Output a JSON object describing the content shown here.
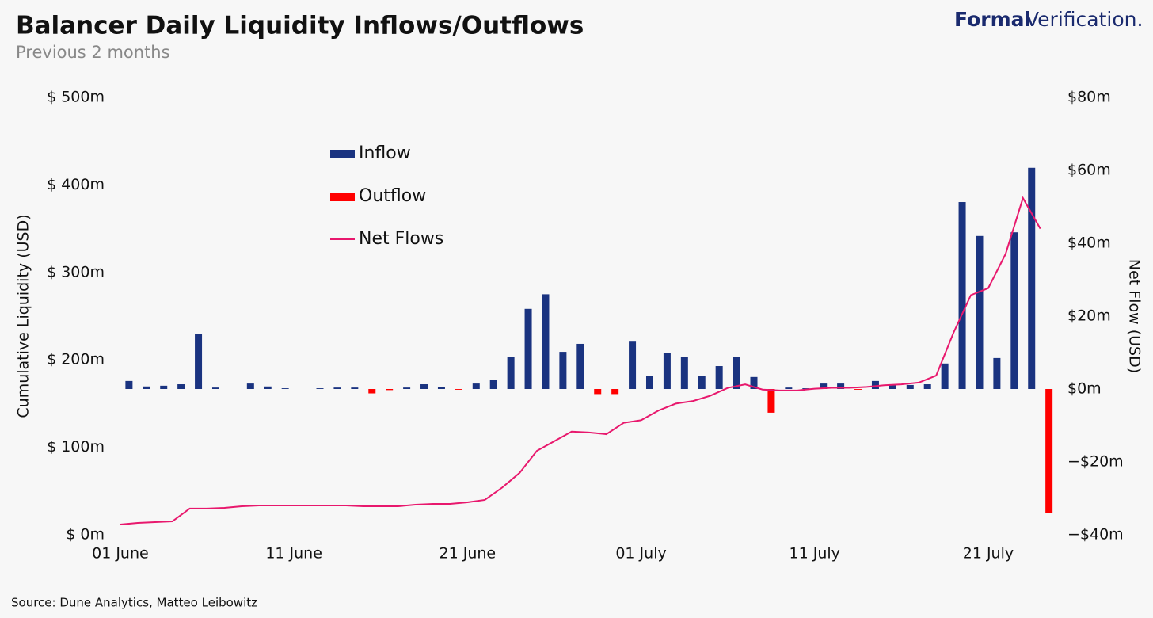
{
  "chart_data": {
    "type": "bar_line",
    "title": "Balancer Daily Liquidity Inflows/Outflows",
    "subtitle": "Previous 2 months",
    "brand": {
      "bold": "Formal",
      "light": "Verification."
    },
    "source": "Source:  Dune Analytics, Matteo Leibowitz",
    "ylabel": "Cumulative Liquidity (USD)",
    "y2label": "Net Flow (USD)",
    "x": [
      0,
      1,
      2,
      3,
      4,
      5,
      6,
      7,
      8,
      9,
      10,
      11,
      12,
      13,
      14,
      15,
      16,
      17,
      18,
      19,
      20,
      21,
      22,
      23,
      24,
      25,
      26,
      27,
      28,
      29,
      30,
      31,
      32,
      33,
      34,
      35,
      36,
      37,
      38,
      39,
      40,
      41,
      42,
      43,
      44,
      45,
      46,
      47,
      48,
      49,
      50,
      51,
      52,
      53
    ],
    "xlim": [
      -1,
      54.2
    ],
    "xticks": [
      {
        "value": 0,
        "label": "01 June"
      },
      {
        "value": 10,
        "label": "11 June"
      },
      {
        "value": 20,
        "label": "21 June"
      },
      {
        "value": 30,
        "label": "01 July"
      },
      {
        "value": 40,
        "label": "11 July"
      },
      {
        "value": 50,
        "label": "21 July"
      }
    ],
    "ylim": [
      0,
      500
    ],
    "yticks": [
      {
        "value": 0,
        "label": "$ 0m"
      },
      {
        "value": 100,
        "label": "$ 100m"
      },
      {
        "value": 200,
        "label": "$ 200m"
      },
      {
        "value": 300,
        "label": "$ 300m"
      },
      {
        "value": 400,
        "label": "$ 400m"
      },
      {
        "value": 500,
        "label": "$ 500m"
      }
    ],
    "y2lim": [
      -40,
      80
    ],
    "y2ticks": [
      {
        "value": -40,
        "label": "−$40m"
      },
      {
        "value": -20,
        "label": "−$20m"
      },
      {
        "value": 0,
        "label": "$0m"
      },
      {
        "value": 20,
        "label": "$20m"
      },
      {
        "value": 40,
        "label": "$40m"
      },
      {
        "value": 60,
        "label": "$60m"
      },
      {
        "value": 80,
        "label": "$80m"
      }
    ],
    "series": [
      {
        "name": "Inflow",
        "type": "bar",
        "axis": "y2",
        "color": "#1a3380",
        "values": [
          2.2,
          0.7,
          0.9,
          1.3,
          15.2,
          0.4,
          null,
          1.5,
          0.7,
          0.2,
          null,
          0.2,
          0.4,
          0.4,
          null,
          null,
          0.4,
          1.3,
          0.5,
          null,
          1.5,
          2.4,
          8.9,
          22,
          26,
          10.2,
          12.4,
          null,
          null,
          13,
          3.5,
          10,
          8.7,
          3.5,
          6.3,
          8.7,
          3.3,
          null,
          0.4,
          0.2,
          1.5,
          1.5,
          null,
          2.2,
          1.1,
          1.1,
          1.3,
          7,
          51.3,
          42,
          8.5,
          43,
          60.7,
          null
        ]
      },
      {
        "name": "Outflow",
        "type": "bar",
        "axis": "y2",
        "color": "#ff0000",
        "values": [
          null,
          null,
          null,
          null,
          null,
          null,
          null,
          null,
          null,
          null,
          null,
          null,
          null,
          null,
          -1.2,
          -0.3,
          null,
          null,
          null,
          -0.2,
          null,
          null,
          null,
          null,
          null,
          null,
          null,
          -1.4,
          -1.4,
          null,
          null,
          null,
          null,
          null,
          null,
          null,
          null,
          -6.5,
          null,
          null,
          null,
          null,
          -0.2,
          null,
          null,
          null,
          null,
          null,
          null,
          null,
          null,
          null,
          null,
          -34.1
        ]
      },
      {
        "name": "Net Flows",
        "type": "line",
        "axis": "y",
        "color": "#e8186d",
        "values": [
          11.8,
          13.6,
          14.5,
          15.4,
          30,
          30,
          30.8,
          32.6,
          33.5,
          33.5,
          33.5,
          33.5,
          33.5,
          33.5,
          32.6,
          32.6,
          32.6,
          34.4,
          35.3,
          35.3,
          37.1,
          39.9,
          54,
          70.7,
          96,
          107,
          118,
          117,
          115,
          128,
          131,
          142,
          150,
          153,
          159,
          168,
          172,
          166,
          165,
          165,
          167,
          168,
          168,
          169,
          171,
          172,
          174,
          182,
          231,
          274,
          282,
          321,
          385,
          350
        ]
      }
    ]
  }
}
